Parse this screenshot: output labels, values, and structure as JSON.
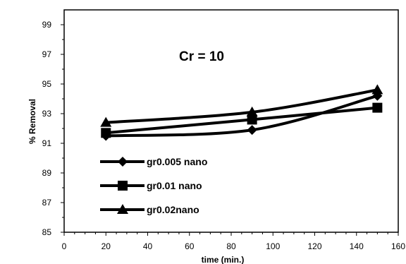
{
  "chart_data": {
    "type": "line",
    "xlabel": "time (min.)",
    "ylabel": "% Removal",
    "annotation": "Cr = 10",
    "xlim": [
      0,
      160
    ],
    "ylim": [
      85,
      100
    ],
    "xticks": [
      0,
      20,
      40,
      60,
      80,
      100,
      120,
      140,
      160
    ],
    "yticks": [
      85,
      87,
      89,
      91,
      93,
      95,
      97,
      99
    ],
    "grid": false,
    "legend": "lower-left",
    "x": [
      20,
      90,
      150
    ],
    "series": [
      {
        "name": "gr0.005 nano",
        "marker": "diamond",
        "values": [
          91.5,
          91.9,
          94.2
        ]
      },
      {
        "name": "gr0.01 nano",
        "marker": "square",
        "values": [
          91.7,
          92.6,
          93.4
        ]
      },
      {
        "name": "gr0.02nano",
        "marker": "triangle",
        "values": [
          92.4,
          93.1,
          94.6
        ]
      }
    ],
    "line_color": "#000000"
  }
}
